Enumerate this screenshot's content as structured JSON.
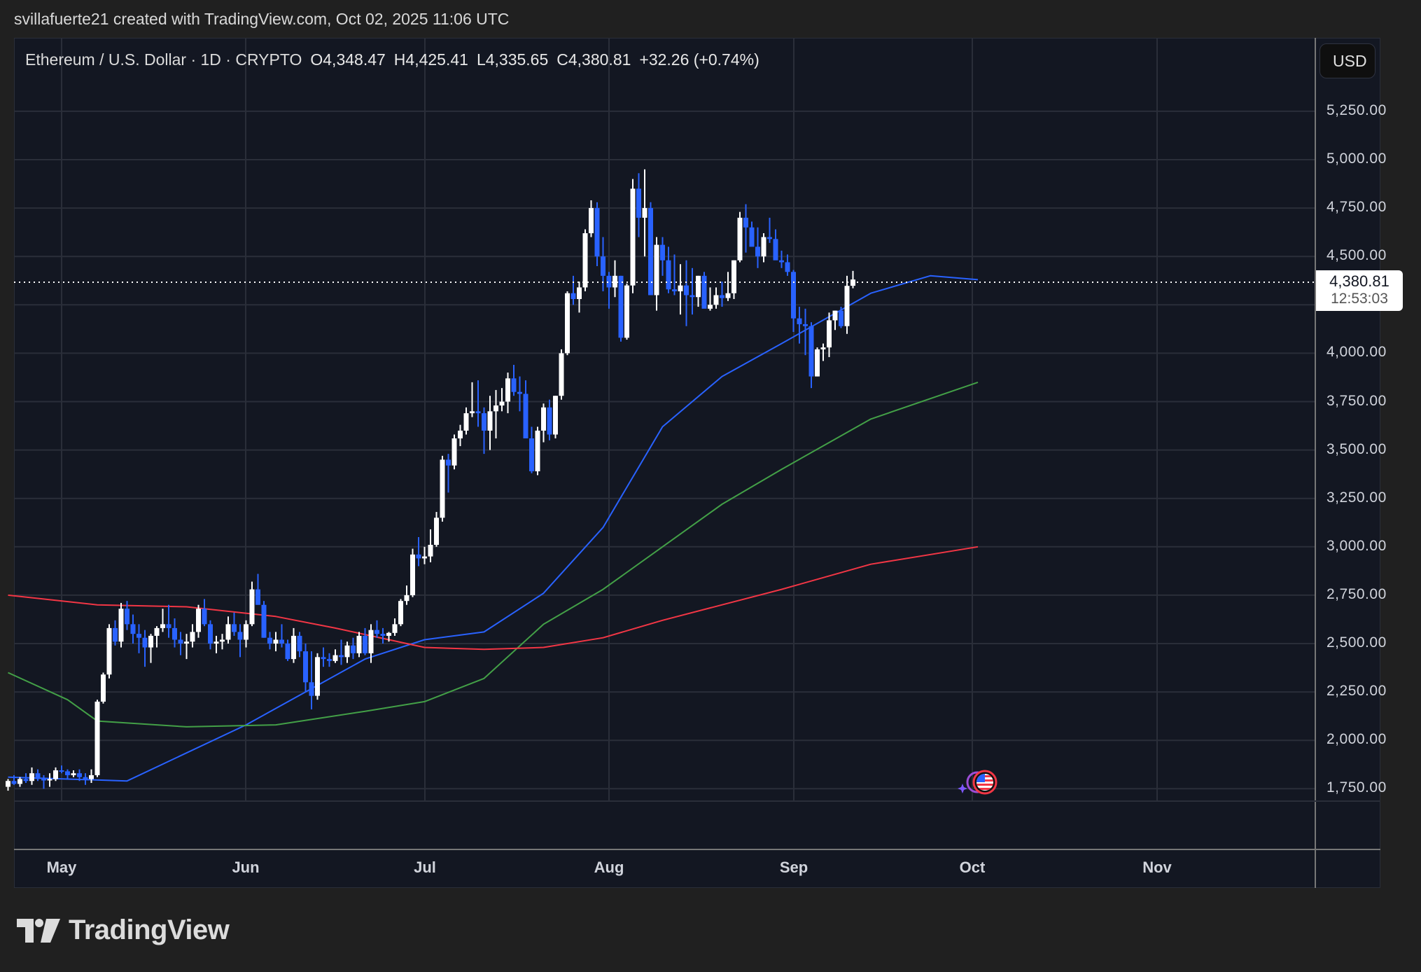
{
  "attribution": "svillafuerte21 created with TradingView.com, Oct 02, 2025 11:06 UTC",
  "legend": {
    "symbol": "Ethereum / U.S. Dollar · 1D · CRYPTO",
    "open": "O4,348.47",
    "high": "H4,425.41",
    "low": "L4,335.65",
    "close": "C4,380.81",
    "change": "+32.26 (+0.74%)"
  },
  "currency_button": "USD",
  "price_axis": [
    "5,250.00",
    "5,000.00",
    "4,750.00",
    "4,500.00",
    "4,250.00",
    "4,000.00",
    "3,750.00",
    "3,500.00",
    "3,250.00",
    "3,000.00",
    "2,750.00",
    "2,500.00",
    "2,250.00",
    "2,000.00",
    "1,750.00"
  ],
  "current_price": {
    "price": "4,380.81",
    "countdown": "12:53:03"
  },
  "time_axis": [
    "May",
    "Jun",
    "Jul",
    "Aug",
    "Sep",
    "Oct",
    "Nov"
  ],
  "logo_text": "TradingView",
  "colors": {
    "up": "#ffffff",
    "down": "#2962ff",
    "ma_blue": "#2962ff",
    "ma_green": "#43a047",
    "ma_red": "#f23645",
    "background": "#131722",
    "grid": "#2a2e39"
  },
  "chart_data": {
    "type": "candlestick",
    "title": "Ethereum / U.S. Dollar · 1D · CRYPTO",
    "xlabel": "",
    "ylabel": "USD",
    "ylim": [
      1700,
      5400
    ],
    "x_ticks": [
      "May",
      "Jun",
      "Jul",
      "Aug",
      "Sep",
      "Oct",
      "Nov"
    ],
    "y_ticks": [
      1750,
      2000,
      2250,
      2500,
      2750,
      3000,
      3250,
      3500,
      3750,
      4000,
      4250,
      4500,
      4750,
      5000,
      5250
    ],
    "grid": true,
    "last": {
      "open": 4348.47,
      "high": 4425.41,
      "low": 4335.65,
      "close": 4380.81,
      "change": 32.26,
      "change_pct": 0.74
    },
    "start_date": "2025-04-22",
    "ohlc": [
      [
        1760,
        1800,
        1740,
        1790
      ],
      [
        1790,
        1820,
        1770,
        1775
      ],
      [
        1775,
        1810,
        1760,
        1800
      ],
      [
        1800,
        1830,
        1780,
        1790
      ],
      [
        1790,
        1860,
        1770,
        1830
      ],
      [
        1830,
        1850,
        1790,
        1800
      ],
      [
        1800,
        1820,
        1750,
        1795
      ],
      [
        1795,
        1830,
        1760,
        1800
      ],
      [
        1800,
        1860,
        1790,
        1845
      ],
      [
        1845,
        1870,
        1830,
        1840
      ],
      [
        1840,
        1850,
        1800,
        1820
      ],
      [
        1820,
        1845,
        1810,
        1830
      ],
      [
        1830,
        1850,
        1790,
        1810
      ],
      [
        1810,
        1830,
        1770,
        1800
      ],
      [
        1800,
        1850,
        1780,
        1820
      ],
      [
        1820,
        2210,
        1810,
        2200
      ],
      [
        2200,
        2350,
        2190,
        2340
      ],
      [
        2340,
        2600,
        2320,
        2580
      ],
      [
        2580,
        2620,
        2490,
        2510
      ],
      [
        2510,
        2710,
        2480,
        2680
      ],
      [
        2680,
        2720,
        2570,
        2600
      ],
      [
        2600,
        2650,
        2500,
        2550
      ],
      [
        2550,
        2600,
        2450,
        2530
      ],
      [
        2530,
        2570,
        2380,
        2480
      ],
      [
        2480,
        2550,
        2400,
        2540
      ],
      [
        2540,
        2590,
        2480,
        2580
      ],
      [
        2580,
        2680,
        2560,
        2600
      ],
      [
        2600,
        2700,
        2530,
        2580
      ],
      [
        2580,
        2630,
        2480,
        2520
      ],
      [
        2520,
        2560,
        2440,
        2500
      ],
      [
        2500,
        2550,
        2420,
        2510
      ],
      [
        2510,
        2600,
        2480,
        2560
      ],
      [
        2560,
        2700,
        2530,
        2680
      ],
      [
        2680,
        2730,
        2590,
        2600
      ],
      [
        2600,
        2620,
        2470,
        2500
      ],
      [
        2500,
        2540,
        2450,
        2510
      ],
      [
        2510,
        2550,
        2470,
        2520
      ],
      [
        2520,
        2640,
        2500,
        2600
      ],
      [
        2600,
        2660,
        2540,
        2560
      ],
      [
        2560,
        2600,
        2430,
        2520
      ],
      [
        2520,
        2620,
        2480,
        2600
      ],
      [
        2600,
        2820,
        2590,
        2780
      ],
      [
        2780,
        2860,
        2700,
        2700
      ],
      [
        2700,
        2720,
        2530,
        2530
      ],
      [
        2530,
        2560,
        2470,
        2500
      ],
      [
        2500,
        2560,
        2460,
        2520
      ],
      [
        2520,
        2600,
        2480,
        2500
      ],
      [
        2500,
        2520,
        2410,
        2420
      ],
      [
        2420,
        2580,
        2400,
        2540
      ],
      [
        2540,
        2560,
        2430,
        2460
      ],
      [
        2460,
        2500,
        2250,
        2300
      ],
      [
        2300,
        2460,
        2160,
        2230
      ],
      [
        2230,
        2450,
        2210,
        2430
      ],
      [
        2430,
        2480,
        2380,
        2420
      ],
      [
        2420,
        2450,
        2380,
        2410
      ],
      [
        2410,
        2470,
        2400,
        2440
      ],
      [
        2440,
        2520,
        2390,
        2430
      ],
      [
        2430,
        2510,
        2400,
        2490
      ],
      [
        2490,
        2530,
        2420,
        2450
      ],
      [
        2450,
        2560,
        2430,
        2540
      ],
      [
        2540,
        2580,
        2440,
        2450
      ],
      [
        2450,
        2600,
        2400,
        2570
      ],
      [
        2570,
        2620,
        2530,
        2550
      ],
      [
        2550,
        2580,
        2500,
        2540
      ],
      [
        2540,
        2560,
        2510,
        2555
      ],
      [
        2555,
        2630,
        2540,
        2600
      ],
      [
        2600,
        2730,
        2590,
        2720
      ],
      [
        2720,
        2800,
        2700,
        2750
      ],
      [
        2750,
        2990,
        2740,
        2960
      ],
      [
        2960,
        3050,
        2900,
        2940
      ],
      [
        2940,
        3000,
        2910,
        2950
      ],
      [
        2950,
        3090,
        2920,
        3010
      ],
      [
        3010,
        3180,
        3000,
        3150
      ],
      [
        3150,
        3470,
        3130,
        3450
      ],
      [
        3450,
        3480,
        3280,
        3420
      ],
      [
        3420,
        3580,
        3400,
        3560
      ],
      [
        3560,
        3630,
        3520,
        3600
      ],
      [
        3600,
        3720,
        3580,
        3690
      ],
      [
        3690,
        3850,
        3670,
        3700
      ],
      [
        3700,
        3860,
        3620,
        3690
      ],
      [
        3690,
        3720,
        3480,
        3600
      ],
      [
        3600,
        3780,
        3500,
        3700
      ],
      [
        3700,
        3810,
        3560,
        3730
      ],
      [
        3730,
        3820,
        3700,
        3750
      ],
      [
        3750,
        3900,
        3690,
        3870
      ],
      [
        3870,
        3940,
        3780,
        3800
      ],
      [
        3800,
        3880,
        3700,
        3790
      ],
      [
        3790,
        3860,
        3580,
        3560
      ],
      [
        3560,
        3620,
        3380,
        3390
      ],
      [
        3390,
        3620,
        3370,
        3600
      ],
      [
        3600,
        3740,
        3540,
        3720
      ],
      [
        3720,
        3760,
        3550,
        3580
      ],
      [
        3580,
        3780,
        3560,
        3780
      ],
      [
        3780,
        4020,
        3760,
        4000
      ],
      [
        4000,
        4320,
        3990,
        4310
      ],
      [
        4310,
        4400,
        4250,
        4280
      ],
      [
        4280,
        4370,
        4210,
        4340
      ],
      [
        4340,
        4640,
        4320,
        4620
      ],
      [
        4620,
        4790,
        4600,
        4750
      ],
      [
        4750,
        4780,
        4450,
        4500
      ],
      [
        4500,
        4600,
        4320,
        4400
      ],
      [
        4400,
        4420,
        4230,
        4340
      ],
      [
        4340,
        4480,
        4290,
        4400
      ],
      [
        4400,
        4400,
        4060,
        4080
      ],
      [
        4080,
        4360,
        4070,
        4350
      ],
      [
        4350,
        4900,
        4310,
        4850
      ],
      [
        4850,
        4930,
        4600,
        4700
      ],
      [
        4700,
        4950,
        4500,
        4750
      ],
      [
        4750,
        4780,
        4300,
        4300
      ],
      [
        4300,
        4600,
        4220,
        4560
      ],
      [
        4560,
        4600,
        4400,
        4480
      ],
      [
        4480,
        4550,
        4310,
        4330
      ],
      [
        4330,
        4510,
        4300,
        4320
      ],
      [
        4320,
        4460,
        4200,
        4350
      ],
      [
        4350,
        4480,
        4140,
        4300
      ],
      [
        4300,
        4440,
        4200,
        4290
      ],
      [
        4290,
        4400,
        4240,
        4400
      ],
      [
        4400,
        4420,
        4250,
        4230
      ],
      [
        4230,
        4340,
        4220,
        4250
      ],
      [
        4250,
        4340,
        4230,
        4300
      ],
      [
        4300,
        4370,
        4240,
        4285
      ],
      [
        4285,
        4420,
        4270,
        4310
      ],
      [
        4310,
        4480,
        4280,
        4480
      ],
      [
        4480,
        4730,
        4470,
        4700
      ],
      [
        4700,
        4770,
        4520,
        4650
      ],
      [
        4650,
        4680,
        4560,
        4550
      ],
      [
        4550,
        4650,
        4440,
        4500
      ],
      [
        4500,
        4620,
        4470,
        4600
      ],
      [
        4600,
        4700,
        4570,
        4590
      ],
      [
        4590,
        4640,
        4530,
        4480
      ],
      [
        4480,
        4530,
        4440,
        4470
      ],
      [
        4470,
        4510,
        4400,
        4420
      ],
      [
        4420,
        4430,
        4110,
        4180
      ],
      [
        4180,
        4240,
        4050,
        4150
      ],
      [
        4150,
        4230,
        3990,
        4140
      ],
      [
        4140,
        4160,
        3820,
        3880
      ],
      [
        3880,
        4030,
        3880,
        4020
      ],
      [
        4020,
        4050,
        3960,
        4030
      ],
      [
        4030,
        4210,
        3980,
        4170
      ],
      [
        4170,
        4220,
        4120,
        4220
      ],
      [
        4220,
        4240,
        4130,
        4140
      ],
      [
        4140,
        4400,
        4100,
        4348
      ],
      [
        4348.47,
        4425.41,
        4335.65,
        4380.81
      ]
    ],
    "moving_averages": [
      {
        "name": "MA (blue)",
        "color": "#2962ff",
        "points": [
          [
            0,
            1810
          ],
          [
            20,
            1790
          ],
          [
            40,
            2080
          ],
          [
            60,
            2420
          ],
          [
            70,
            2520
          ],
          [
            80,
            2560
          ],
          [
            90,
            2760
          ],
          [
            100,
            3100
          ],
          [
            110,
            3620
          ],
          [
            120,
            3880
          ],
          [
            130,
            4050
          ],
          [
            145,
            4310
          ],
          [
            155,
            4400
          ],
          [
            163,
            4380
          ]
        ]
      },
      {
        "name": "MA (green)",
        "color": "#43a047",
        "points": [
          [
            0,
            2350
          ],
          [
            10,
            2210
          ],
          [
            15,
            2100
          ],
          [
            30,
            2070
          ],
          [
            45,
            2080
          ],
          [
            60,
            2150
          ],
          [
            70,
            2200
          ],
          [
            80,
            2320
          ],
          [
            90,
            2600
          ],
          [
            100,
            2780
          ],
          [
            110,
            3000
          ],
          [
            120,
            3220
          ],
          [
            130,
            3400
          ],
          [
            145,
            3660
          ],
          [
            163,
            3850
          ]
        ]
      },
      {
        "name": "MA (red)",
        "color": "#f23645",
        "points": [
          [
            0,
            2750
          ],
          [
            15,
            2700
          ],
          [
            30,
            2690
          ],
          [
            45,
            2640
          ],
          [
            55,
            2580
          ],
          [
            70,
            2480
          ],
          [
            80,
            2470
          ],
          [
            90,
            2480
          ],
          [
            100,
            2530
          ],
          [
            110,
            2620
          ],
          [
            120,
            2700
          ],
          [
            130,
            2780
          ],
          [
            145,
            2910
          ],
          [
            163,
            3000
          ]
        ]
      }
    ]
  }
}
